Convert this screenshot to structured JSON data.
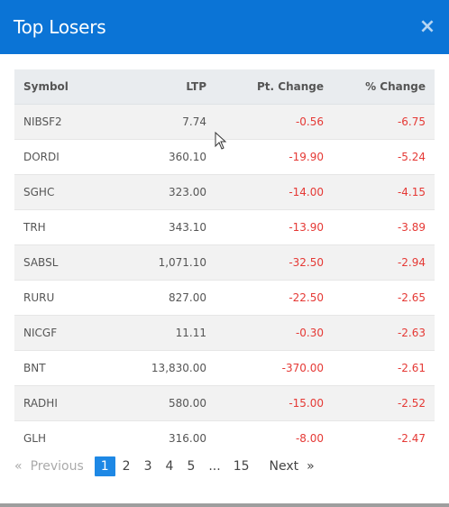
{
  "modal": {
    "title": "Top Losers",
    "close_label": "×"
  },
  "table": {
    "headers": {
      "symbol": "Symbol",
      "ltp": "LTP",
      "pt_change": "Pt. Change",
      "pct_change": "% Change"
    },
    "rows": [
      {
        "symbol": "NIBSF2",
        "ltp": "7.74",
        "pt_change": "-0.56",
        "pct_change": "-6.75"
      },
      {
        "symbol": "DORDI",
        "ltp": "360.10",
        "pt_change": "-19.90",
        "pct_change": "-5.24"
      },
      {
        "symbol": "SGHC",
        "ltp": "323.00",
        "pt_change": "-14.00",
        "pct_change": "-4.15"
      },
      {
        "symbol": "TRH",
        "ltp": "343.10",
        "pt_change": "-13.90",
        "pct_change": "-3.89"
      },
      {
        "symbol": "SABSL",
        "ltp": "1,071.10",
        "pt_change": "-32.50",
        "pct_change": "-2.94"
      },
      {
        "symbol": "RURU",
        "ltp": "827.00",
        "pt_change": "-22.50",
        "pct_change": "-2.65"
      },
      {
        "symbol": "NICGF",
        "ltp": "11.11",
        "pt_change": "-0.30",
        "pct_change": "-2.63"
      },
      {
        "symbol": "BNT",
        "ltp": "13,830.00",
        "pt_change": "-370.00",
        "pct_change": "-2.61"
      },
      {
        "symbol": "RADHI",
        "ltp": "580.00",
        "pt_change": "-15.00",
        "pct_change": "-2.52"
      },
      {
        "symbol": "GLH",
        "ltp": "316.00",
        "pt_change": "-8.00",
        "pct_change": "-2.47"
      }
    ]
  },
  "pagination": {
    "prev_arrow": "«",
    "previous_label": "Previous",
    "pages": [
      "1",
      "2",
      "3",
      "4",
      "5"
    ],
    "active_page": "1",
    "ellipsis": "...",
    "last_page": "15",
    "next_label": "Next",
    "next_arrow": "»"
  },
  "colors": {
    "header": "#0b74d6",
    "negative": "#e53935",
    "active_page": "#1e88e5"
  },
  "icons": {
    "close": "close-icon",
    "cursor": "mouse-cursor-icon"
  }
}
